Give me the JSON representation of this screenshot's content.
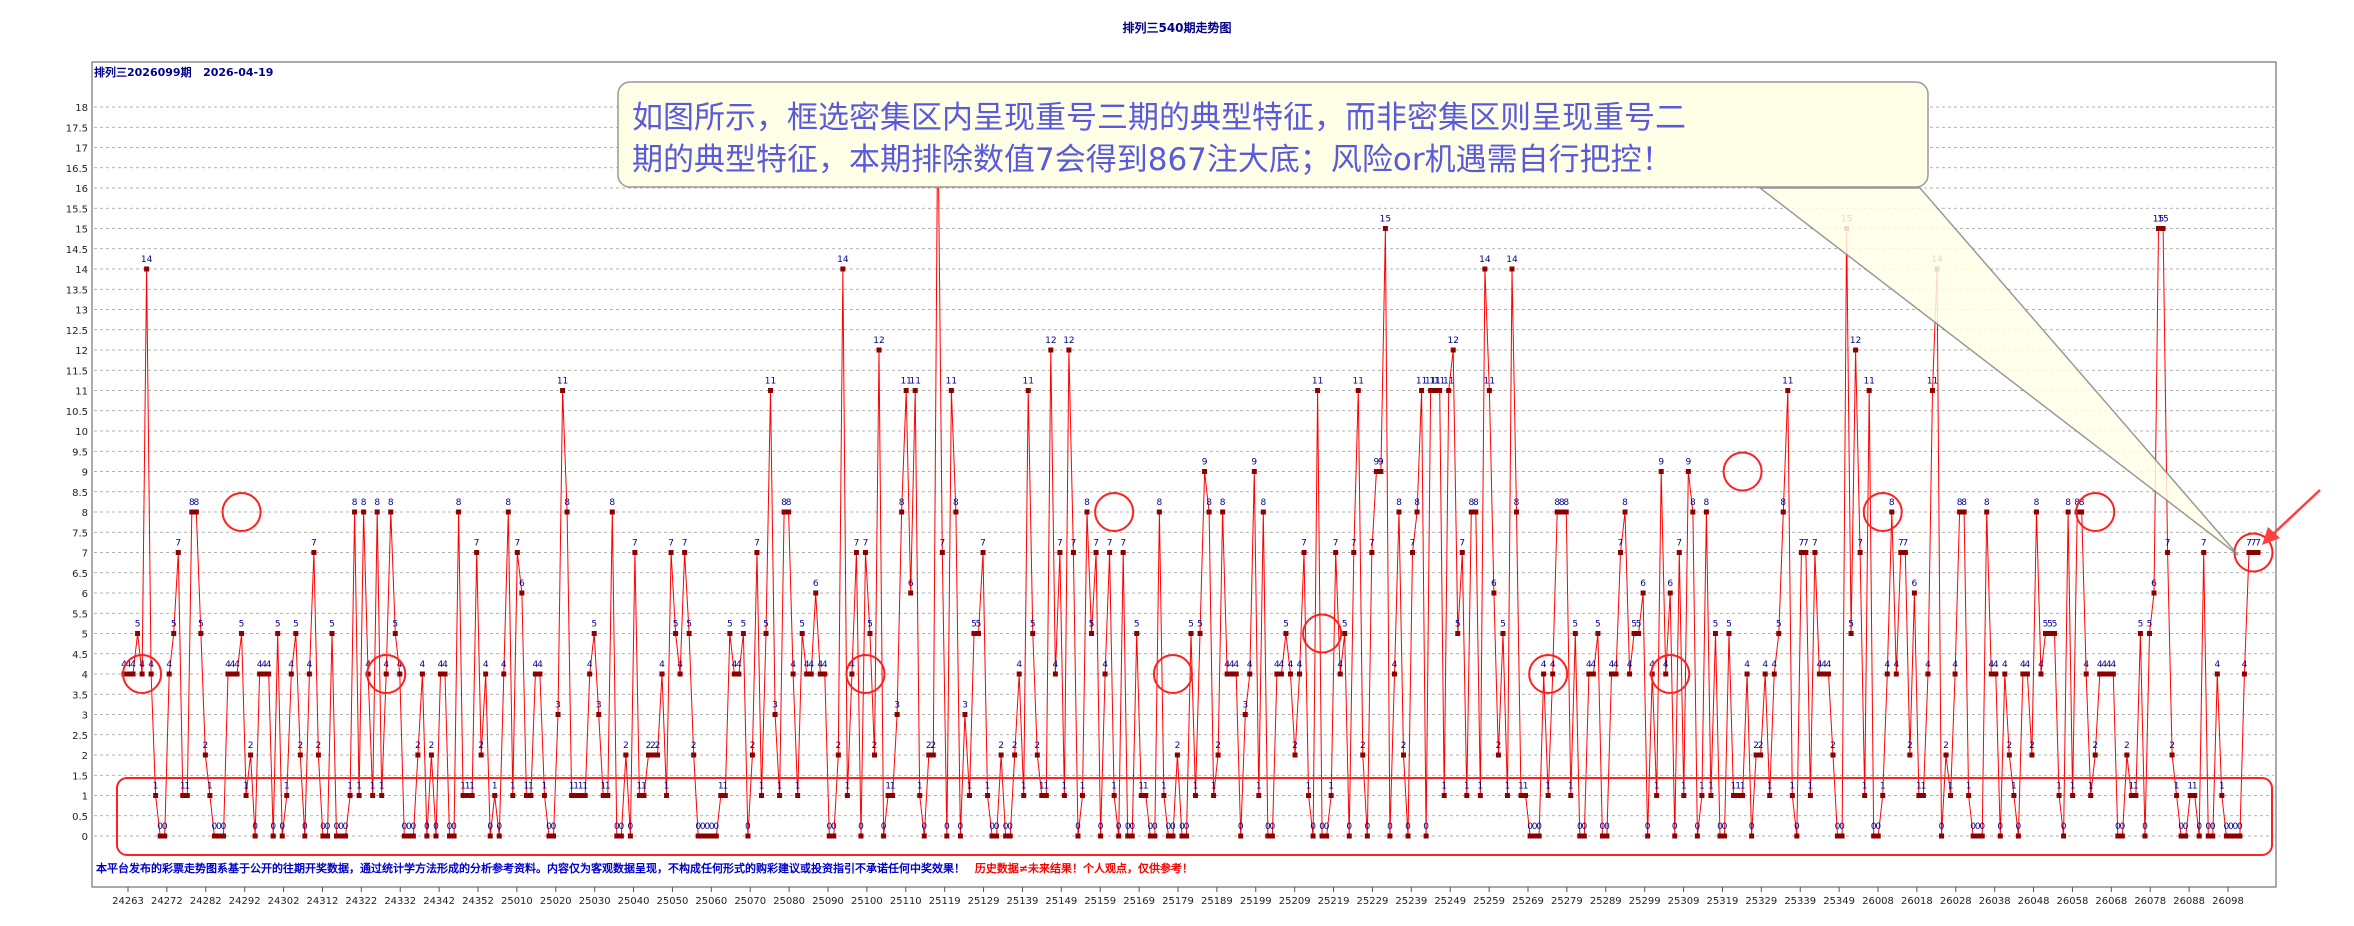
{
  "page_title": "排列三540期走势图",
  "issue_label": "排列三2026099期   2026-04-19",
  "annotation": {
    "line1": "如图所示，框选密集区内呈现重号三期的典型特征，而非密集区则呈现重号二",
    "line2": "期的典型特征，本期排除数值7会得到867注大底；风险or机遇需自行把控！"
  },
  "disclaimer_blue": "本平台发布的彩票走势图系基于公开的往期开奖数据，通过统计学方法形成的分析参考资料。内容仅为客观数据呈现，不构成任何形式的购彩建议或投资指引不承诺任何中奖效果！",
  "disclaimer_red": "历史数据≠未来结果！个人观点，仅供参考！",
  "colors": {
    "line": "#ff0000",
    "marker": "#8b0000",
    "value_label": "#00008b",
    "title": "#00008b",
    "annotation_text": "#5a5adc",
    "annotation_bg": "#ffffe8",
    "circle": "#ff2020",
    "grid": "#999999"
  },
  "chart_data": {
    "type": "line",
    "title": "排列三540期走势图",
    "xlabel": "",
    "ylabel": "",
    "ylim": [
      0,
      18
    ],
    "ytick_step": 0.5,
    "ytick_labels": [
      "0",
      "0.5",
      "1",
      "1.5",
      "2",
      "2.5",
      "3",
      "3.5",
      "4",
      "4.5",
      "5",
      "5.5",
      "6",
      "6.5",
      "7",
      "7.5",
      "8",
      "8.5",
      "9",
      "9.5",
      "10",
      "10.5",
      "11",
      "11.5",
      "12",
      "12.5",
      "13",
      "13.5",
      "14",
      "14.5",
      "15",
      "15.5",
      "16",
      "16.5",
      "17",
      "17.5",
      "18"
    ],
    "grid": true,
    "xtick_labels": [
      "24263",
      "24272",
      "24282",
      "24292",
      "24302",
      "24312",
      "24322",
      "24332",
      "24342",
      "24352",
      "25010",
      "25020",
      "25030",
      "25040",
      "25050",
      "25060",
      "25070",
      "25080",
      "25090",
      "25100",
      "25110",
      "25119",
      "25129",
      "25139",
      "25149",
      "25159",
      "25169",
      "25179",
      "25189",
      "25199",
      "25209",
      "25219",
      "25229",
      "25239",
      "25249",
      "25259",
      "25269",
      "25279",
      "25289",
      "25299",
      "25309",
      "25319",
      "25329",
      "25339",
      "25349",
      "26008",
      "26018",
      "26028",
      "26038",
      "26048",
      "26058",
      "26068",
      "26078",
      "26088",
      "26098"
    ],
    "series": [
      {
        "values": [
          4,
          4,
          4,
          5,
          4,
          14,
          4,
          1,
          0,
          0,
          4,
          5,
          7,
          1,
          1,
          8,
          8,
          5,
          2,
          1,
          0,
          0,
          0,
          4,
          4,
          4,
          5,
          1,
          2,
          0,
          4,
          4,
          4,
          0,
          5,
          0,
          1,
          4,
          5,
          2,
          0,
          4,
          7,
          2,
          0,
          0,
          5,
          0,
          0,
          0,
          1,
          8,
          1,
          8,
          4,
          1,
          8,
          1,
          4,
          8,
          5,
          4,
          0,
          0,
          0,
          2,
          4,
          0,
          2,
          0,
          4,
          4,
          0,
          0,
          8,
          1,
          1,
          1,
          7,
          2,
          4,
          0,
          1,
          0,
          4,
          8,
          1,
          7,
          6,
          1,
          1,
          4,
          4,
          1,
          0,
          0,
          3,
          11,
          8,
          1,
          1,
          1,
          1,
          4,
          5,
          3,
          1,
          1,
          8,
          0,
          0,
          2,
          0,
          7,
          1,
          1,
          2,
          2,
          2,
          4,
          1,
          7,
          5,
          4,
          7,
          5,
          2,
          0,
          0,
          0,
          0,
          0,
          1,
          1,
          5,
          4,
          4,
          5,
          0,
          2,
          7,
          1,
          5,
          11,
          3,
          1,
          8,
          8,
          4,
          1,
          5,
          4,
          4,
          6,
          4,
          4,
          0,
          0,
          2,
          14,
          1,
          4,
          7,
          0,
          7,
          5,
          2,
          12,
          0,
          1,
          1,
          3,
          8,
          11,
          6,
          11,
          1,
          0,
          2,
          2,
          18,
          7,
          0,
          11,
          8,
          0,
          3,
          1,
          5,
          5,
          7,
          1,
          0,
          0,
          2,
          0,
          0,
          2,
          4,
          1,
          11,
          5,
          2,
          1,
          1,
          12,
          4,
          7,
          1,
          12,
          7,
          0,
          1,
          8,
          5,
          7,
          0,
          4,
          7,
          1,
          0,
          7,
          0,
          0,
          5,
          1,
          1,
          0,
          0,
          8,
          1,
          0,
          0,
          2,
          0,
          0,
          5,
          1,
          5,
          9,
          8,
          1,
          2,
          8,
          4,
          4,
          4,
          0,
          3,
          4,
          9,
          1,
          8,
          0,
          0,
          4,
          4,
          5,
          4,
          2,
          4,
          7,
          1,
          0,
          11,
          0,
          0,
          1,
          7,
          4,
          5,
          0,
          7,
          11,
          2,
          0,
          7,
          9,
          9,
          15,
          0,
          4,
          8,
          2,
          0,
          7,
          8,
          11,
          0,
          11,
          11,
          11,
          1,
          11,
          12,
          5,
          7,
          1,
          8,
          8,
          1,
          14,
          11,
          6,
          2,
          5,
          1,
          14,
          8,
          1,
          1,
          0,
          0,
          0,
          4,
          1,
          4,
          8,
          8,
          8,
          1,
          5,
          0,
          0,
          4,
          4,
          5,
          0,
          0,
          4,
          4,
          7,
          8,
          4,
          5,
          5,
          6,
          0,
          4,
          1,
          9,
          4,
          6,
          0,
          7,
          1,
          9,
          8,
          0,
          1,
          8,
          1,
          5,
          0,
          0,
          5,
          1,
          1,
          1,
          4,
          0,
          2,
          2,
          4,
          1,
          4,
          5,
          8,
          11,
          1,
          0,
          7,
          7,
          1,
          7,
          4,
          4,
          4,
          2,
          0,
          0,
          15,
          5,
          12,
          7,
          1,
          11,
          0,
          0,
          1,
          4,
          8,
          4,
          7,
          7,
          2,
          6,
          1,
          1,
          4,
          11,
          14,
          0,
          2,
          1,
          4,
          8,
          8,
          1,
          0,
          0,
          0,
          8,
          4,
          4,
          0,
          4,
          2,
          1,
          0,
          4,
          4,
          2,
          8,
          4,
          5,
          5,
          5,
          1,
          0,
          8,
          1,
          8,
          8,
          4,
          1,
          2,
          4,
          4,
          4,
          4,
          0,
          0,
          2,
          1,
          1,
          5,
          0,
          5,
          6,
          15,
          15,
          7,
          2,
          1,
          0,
          0,
          1,
          1,
          0,
          7,
          0,
          0,
          4,
          1,
          0,
          0,
          0,
          0,
          4,
          7,
          7,
          7
        ]
      }
    ]
  }
}
